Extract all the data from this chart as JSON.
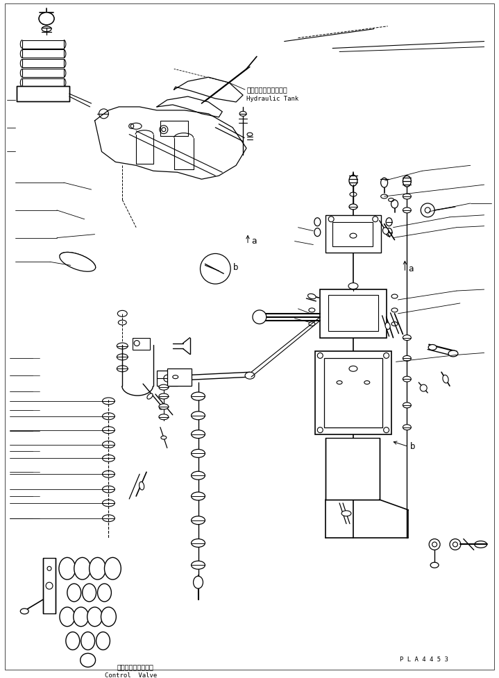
{
  "bg_color": "#ffffff",
  "line_color": "#000000",
  "fig_width": 7.19,
  "fig_height": 9.77,
  "dpi": 100,
  "label_hydraulic_jp": "ハイドロリックタンク",
  "label_hydraulic_en": "Hydraulic Tank",
  "label_control_jp": "コントロールバルブ",
  "label_control_en": "Control  Valve",
  "label_pla": "P L A 4 4 5 3",
  "label_a1": "a",
  "label_b1": "b",
  "label_a2": "a",
  "label_b2": "b"
}
